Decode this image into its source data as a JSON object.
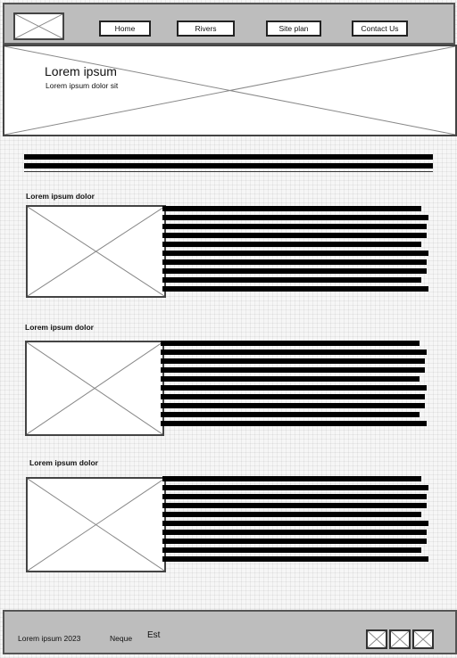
{
  "header": {
    "logo_icon": "image-placeholder-icon",
    "nav": [
      "Home",
      "Rivers",
      "Site plan",
      "Contact Us"
    ]
  },
  "hero": {
    "title": "Lorem ipsum",
    "subtitle": "Lorem ipsum dolor sit"
  },
  "sections": [
    {
      "title": "Lorem ipsum dolor",
      "image_icon": "image-placeholder-icon",
      "text_lines": 10
    },
    {
      "title": "Lorem ipsum dolor",
      "image_icon": "image-placeholder-icon",
      "text_lines": 10
    },
    {
      "title": "Lorem ipsum dolor",
      "image_icon": "image-placeholder-icon",
      "text_lines": 10
    }
  ],
  "footer": {
    "copyright": "Lorem ipsum 2023",
    "link1": "Neque",
    "link2": "Est",
    "social_icons": [
      "image-placeholder-icon",
      "image-placeholder-icon",
      "image-placeholder-icon"
    ]
  }
}
